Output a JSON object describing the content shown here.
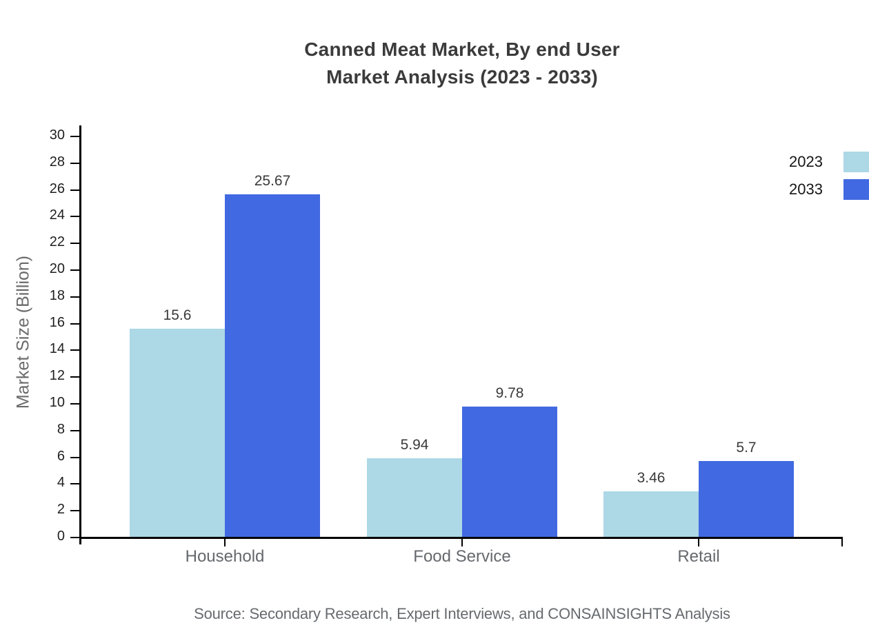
{
  "title": {
    "line1": "Canned Meat Market, By end User",
    "line2": "Market Analysis (2023 - 2033)"
  },
  "source": "Source: Secondary Research, Expert Interviews, and CONSAINSIGHTS Analysis",
  "colors": {
    "series_2023": "#add8e6",
    "series_2033": "#4169e1",
    "title_text": "#3b3b3b",
    "axis_line": "#000000",
    "tick_label_text": "#1f1f1f",
    "category_label_text": "#65686c",
    "value_label_text": "#3a3a3a",
    "source_text": "#666a6e"
  },
  "chart_data": {
    "type": "bar",
    "title": "Canned Meat Market, By end User Market Analysis (2023 - 2033)",
    "categories": [
      "Household",
      "Food Service",
      "Retail"
    ],
    "series": [
      {
        "name": "2023",
        "color": "#add8e6",
        "values": [
          15.6,
          5.94,
          3.46
        ]
      },
      {
        "name": "2033",
        "color": "#4169e1",
        "values": [
          25.67,
          9.78,
          5.7
        ]
      }
    ],
    "xlabel": "",
    "ylabel": "Market Size (Billion)",
    "ylim": [
      0,
      30
    ],
    "ytick_interval": 2,
    "grid": false,
    "legend_position": "top-right",
    "legend_labels": [
      "2023",
      "2033"
    ]
  }
}
